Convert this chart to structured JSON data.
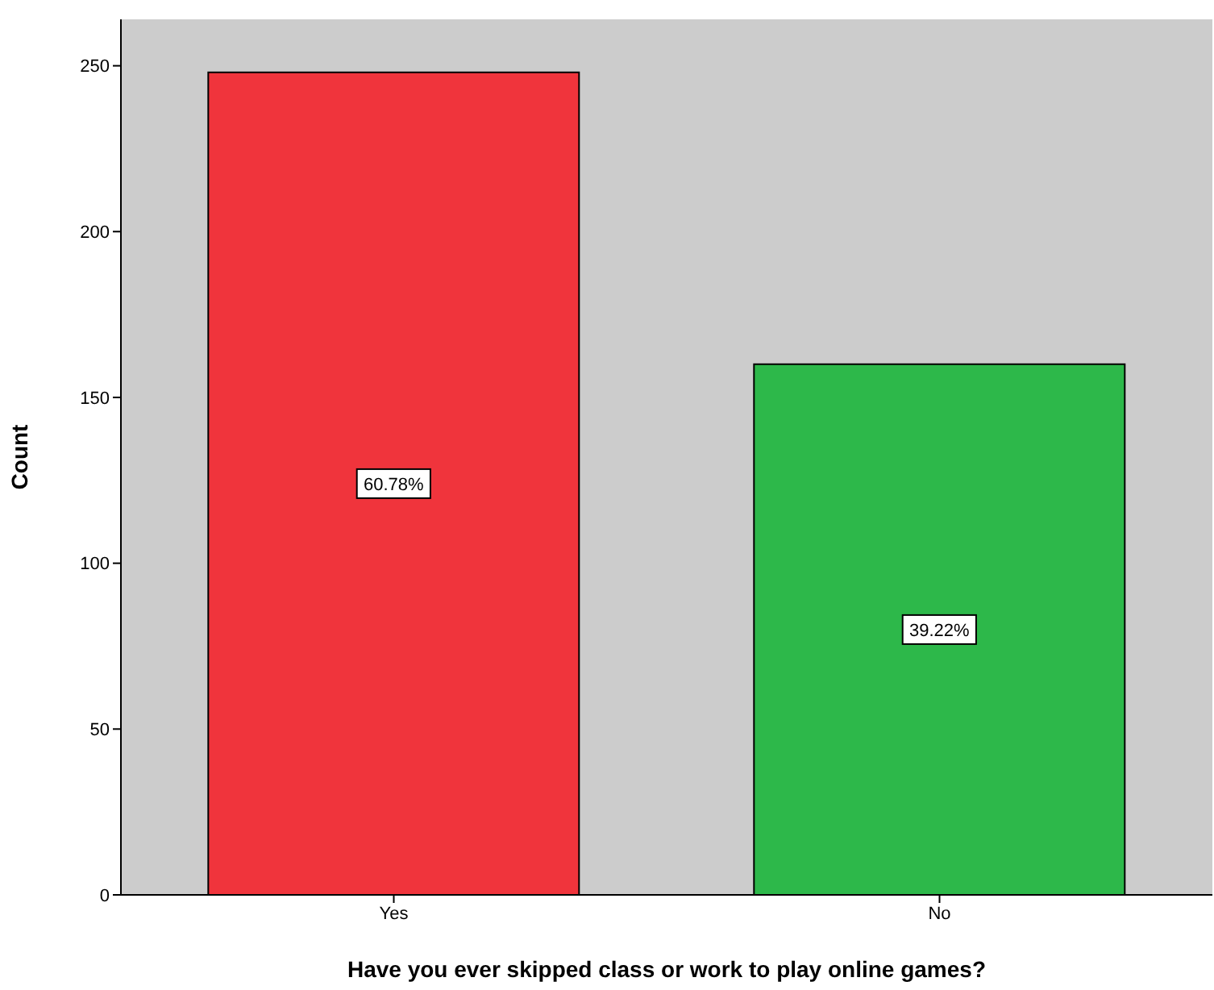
{
  "chart_data": {
    "type": "bar",
    "xlabel": "Have you ever skipped class or work to play online games?",
    "ylabel": "Count",
    "categories": [
      "Yes",
      "No"
    ],
    "values": [
      248,
      160
    ],
    "colors": [
      "#f0343c",
      "#2db84a"
    ],
    "annotations": [
      "60.78%",
      "39.22%"
    ],
    "ylim": [
      0,
      264
    ],
    "yticks": [
      0,
      50,
      100,
      150,
      200,
      250
    ],
    "grid": false
  }
}
